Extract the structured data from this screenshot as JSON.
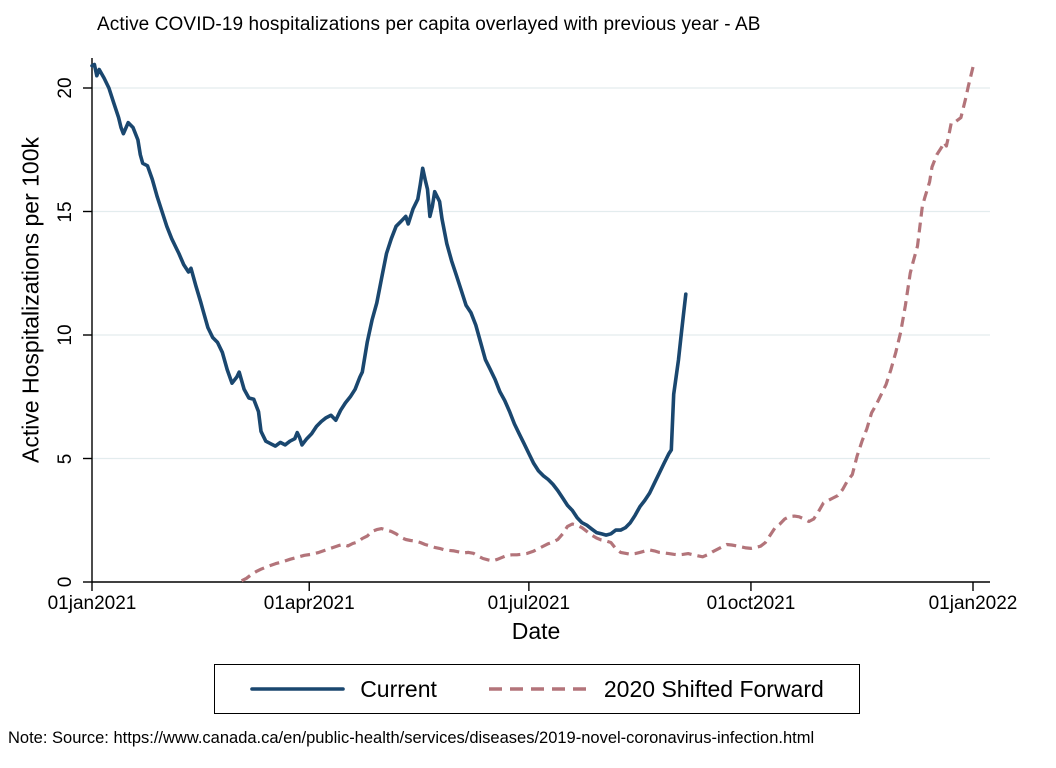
{
  "note": "Note: Source: https://www.canada.ca/en/public-health/services/diseases/2019-novel-coronavirus-infection.html",
  "legend": {
    "position": "bottom",
    "entries": [
      {
        "label": "Current",
        "style": "solid"
      },
      {
        "label": "2020 Shifted Forward",
        "style": "dashed"
      }
    ]
  },
  "chart_data": {
    "type": "line",
    "title": "Active COVID-19 hospitalizations per capita overlayed with previous year - AB",
    "xlabel": "Date",
    "ylabel": "Active Hospitalizations per 100k",
    "grid": true,
    "grid_color": "#e3ecee",
    "axis_color": "#000000",
    "x_unit": "days since 01jan2021",
    "xlim": [
      0,
      372
    ],
    "ylim": [
      0,
      21.2
    ],
    "x_ticks": [
      {
        "day": 0,
        "label": "01jan2021"
      },
      {
        "day": 90,
        "label": "01apr2021"
      },
      {
        "day": 181,
        "label": "01jul2021"
      },
      {
        "day": 273,
        "label": "01oct2021"
      },
      {
        "day": 365,
        "label": "01jan2022"
      }
    ],
    "y_ticks": [
      0,
      5,
      10,
      15,
      20
    ],
    "series": [
      {
        "name": "Current",
        "color": "#1a476f",
        "style": "solid",
        "points": [
          [
            0,
            20.9
          ],
          [
            1,
            20.95
          ],
          [
            2,
            20.5
          ],
          [
            3,
            20.75
          ],
          [
            5,
            20.4
          ],
          [
            7,
            20.0
          ],
          [
            9,
            19.4
          ],
          [
            11,
            18.8
          ],
          [
            12,
            18.4
          ],
          [
            13,
            18.15
          ],
          [
            15,
            18.6
          ],
          [
            17,
            18.4
          ],
          [
            19,
            17.9
          ],
          [
            20,
            17.3
          ],
          [
            21,
            16.95
          ],
          [
            23,
            16.85
          ],
          [
            25,
            16.3
          ],
          [
            27,
            15.6
          ],
          [
            29,
            15.0
          ],
          [
            31,
            14.4
          ],
          [
            33,
            13.9
          ],
          [
            35,
            13.5
          ],
          [
            36,
            13.3
          ],
          [
            38,
            12.85
          ],
          [
            40,
            12.55
          ],
          [
            41,
            12.7
          ],
          [
            43,
            12.0
          ],
          [
            45,
            11.35
          ],
          [
            46,
            11.0
          ],
          [
            48,
            10.3
          ],
          [
            50,
            9.9
          ],
          [
            52,
            9.7
          ],
          [
            54,
            9.3
          ],
          [
            56,
            8.6
          ],
          [
            58,
            8.05
          ],
          [
            60,
            8.3
          ],
          [
            61,
            8.5
          ],
          [
            63,
            7.8
          ],
          [
            65,
            7.45
          ],
          [
            67,
            7.4
          ],
          [
            69,
            6.9
          ],
          [
            70,
            6.1
          ],
          [
            71,
            5.9
          ],
          [
            72,
            5.7
          ],
          [
            74,
            5.6
          ],
          [
            76,
            5.5
          ],
          [
            78,
            5.65
          ],
          [
            80,
            5.55
          ],
          [
            82,
            5.7
          ],
          [
            84,
            5.8
          ],
          [
            85,
            6.05
          ],
          [
            86,
            5.85
          ],
          [
            87,
            5.55
          ],
          [
            89,
            5.8
          ],
          [
            91,
            6.0
          ],
          [
            93,
            6.3
          ],
          [
            95,
            6.5
          ],
          [
            97,
            6.65
          ],
          [
            99,
            6.75
          ],
          [
            101,
            6.55
          ],
          [
            103,
            6.95
          ],
          [
            105,
            7.25
          ],
          [
            107,
            7.5
          ],
          [
            109,
            7.8
          ],
          [
            111,
            8.3
          ],
          [
            112,
            8.5
          ],
          [
            114,
            9.7
          ],
          [
            116,
            10.6
          ],
          [
            118,
            11.3
          ],
          [
            120,
            12.3
          ],
          [
            122,
            13.3
          ],
          [
            124,
            13.9
          ],
          [
            126,
            14.4
          ],
          [
            128,
            14.6
          ],
          [
            130,
            14.8
          ],
          [
            131,
            14.5
          ],
          [
            133,
            15.1
          ],
          [
            135,
            15.5
          ],
          [
            136,
            16.1
          ],
          [
            137,
            16.75
          ],
          [
            138,
            16.3
          ],
          [
            139,
            15.9
          ],
          [
            140,
            14.8
          ],
          [
            141,
            15.2
          ],
          [
            142,
            15.8
          ],
          [
            144,
            15.4
          ],
          [
            145,
            14.7
          ],
          [
            147,
            13.7
          ],
          [
            149,
            13.0
          ],
          [
            151,
            12.4
          ],
          [
            153,
            11.8
          ],
          [
            155,
            11.2
          ],
          [
            157,
            10.9
          ],
          [
            159,
            10.4
          ],
          [
            161,
            9.7
          ],
          [
            163,
            9.0
          ],
          [
            165,
            8.6
          ],
          [
            167,
            8.2
          ],
          [
            169,
            7.7
          ],
          [
            171,
            7.35
          ],
          [
            173,
            6.9
          ],
          [
            175,
            6.4
          ],
          [
            177,
            6.0
          ],
          [
            179,
            5.6
          ],
          [
            181,
            5.2
          ],
          [
            183,
            4.8
          ],
          [
            185,
            4.5
          ],
          [
            187,
            4.3
          ],
          [
            189,
            4.15
          ],
          [
            191,
            3.95
          ],
          [
            193,
            3.7
          ],
          [
            195,
            3.4
          ],
          [
            197,
            3.1
          ],
          [
            199,
            2.9
          ],
          [
            201,
            2.6
          ],
          [
            203,
            2.4
          ],
          [
            205,
            2.3
          ],
          [
            207,
            2.15
          ],
          [
            209,
            2.0
          ],
          [
            211,
            1.95
          ],
          [
            213,
            1.9
          ],
          [
            215,
            1.95
          ],
          [
            217,
            2.1
          ],
          [
            219,
            2.1
          ],
          [
            221,
            2.2
          ],
          [
            223,
            2.4
          ],
          [
            225,
            2.7
          ],
          [
            227,
            3.05
          ],
          [
            229,
            3.3
          ],
          [
            231,
            3.6
          ],
          [
            233,
            4.0
          ],
          [
            235,
            4.4
          ],
          [
            237,
            4.8
          ],
          [
            239,
            5.2
          ],
          [
            240,
            5.35
          ],
          [
            241,
            7.6
          ],
          [
            242,
            8.3
          ],
          [
            243,
            9.0
          ],
          [
            244,
            9.9
          ],
          [
            245,
            10.8
          ],
          [
            246,
            11.65
          ]
        ]
      },
      {
        "name": "2020 Shifted Forward",
        "color": "#b3747a",
        "style": "dashed",
        "points": [
          [
            62,
            0.05
          ],
          [
            64,
            0.15
          ],
          [
            66,
            0.3
          ],
          [
            68,
            0.42
          ],
          [
            70,
            0.52
          ],
          [
            73,
            0.64
          ],
          [
            76,
            0.74
          ],
          [
            79,
            0.82
          ],
          [
            82,
            0.92
          ],
          [
            85,
            1.0
          ],
          [
            88,
            1.08
          ],
          [
            91,
            1.12
          ],
          [
            94,
            1.2
          ],
          [
            97,
            1.3
          ],
          [
            100,
            1.4
          ],
          [
            102,
            1.47
          ],
          [
            104,
            1.52
          ],
          [
            106,
            1.46
          ],
          [
            108,
            1.56
          ],
          [
            110,
            1.62
          ],
          [
            112,
            1.76
          ],
          [
            114,
            1.86
          ],
          [
            116,
            2.05
          ],
          [
            118,
            2.12
          ],
          [
            120,
            2.16
          ],
          [
            122,
            2.1
          ],
          [
            124,
            2.05
          ],
          [
            126,
            1.95
          ],
          [
            128,
            1.8
          ],
          [
            130,
            1.72
          ],
          [
            132,
            1.68
          ],
          [
            134,
            1.66
          ],
          [
            136,
            1.6
          ],
          [
            138,
            1.52
          ],
          [
            140,
            1.46
          ],
          [
            142,
            1.4
          ],
          [
            144,
            1.36
          ],
          [
            146,
            1.3
          ],
          [
            148,
            1.28
          ],
          [
            150,
            1.26
          ],
          [
            152,
            1.22
          ],
          [
            154,
            1.18
          ],
          [
            156,
            1.2
          ],
          [
            158,
            1.16
          ],
          [
            160,
            1.05
          ],
          [
            162,
            0.95
          ],
          [
            164,
            0.9
          ],
          [
            166,
            0.86
          ],
          [
            168,
            0.92
          ],
          [
            170,
            1.0
          ],
          [
            172,
            1.08
          ],
          [
            174,
            1.1
          ],
          [
            176,
            1.1
          ],
          [
            178,
            1.12
          ],
          [
            180,
            1.15
          ],
          [
            183,
            1.25
          ],
          [
            186,
            1.4
          ],
          [
            189,
            1.55
          ],
          [
            191,
            1.62
          ],
          [
            193,
            1.72
          ],
          [
            195,
            1.95
          ],
          [
            197,
            2.25
          ],
          [
            199,
            2.35
          ],
          [
            201,
            2.3
          ],
          [
            203,
            2.2
          ],
          [
            205,
            2.05
          ],
          [
            207,
            1.9
          ],
          [
            209,
            1.78
          ],
          [
            211,
            1.7
          ],
          [
            213,
            1.66
          ],
          [
            215,
            1.6
          ],
          [
            217,
            1.35
          ],
          [
            219,
            1.2
          ],
          [
            221,
            1.16
          ],
          [
            223,
            1.12
          ],
          [
            225,
            1.15
          ],
          [
            227,
            1.2
          ],
          [
            229,
            1.25
          ],
          [
            231,
            1.3
          ],
          [
            233,
            1.26
          ],
          [
            235,
            1.2
          ],
          [
            237,
            1.18
          ],
          [
            239,
            1.15
          ],
          [
            241,
            1.12
          ],
          [
            243,
            1.1
          ],
          [
            245,
            1.12
          ],
          [
            247,
            1.15
          ],
          [
            249,
            1.1
          ],
          [
            251,
            1.06
          ],
          [
            253,
            1.02
          ],
          [
            255,
            1.1
          ],
          [
            257,
            1.22
          ],
          [
            259,
            1.32
          ],
          [
            261,
            1.42
          ],
          [
            263,
            1.52
          ],
          [
            265,
            1.5
          ],
          [
            267,
            1.46
          ],
          [
            269,
            1.42
          ],
          [
            271,
            1.38
          ],
          [
            273,
            1.36
          ],
          [
            275,
            1.4
          ],
          [
            277,
            1.45
          ],
          [
            279,
            1.6
          ],
          [
            281,
            1.9
          ],
          [
            283,
            2.2
          ],
          [
            285,
            2.35
          ],
          [
            287,
            2.55
          ],
          [
            289,
            2.65
          ],
          [
            291,
            2.67
          ],
          [
            293,
            2.64
          ],
          [
            295,
            2.55
          ],
          [
            297,
            2.45
          ],
          [
            299,
            2.55
          ],
          [
            301,
            2.85
          ],
          [
            303,
            3.2
          ],
          [
            305,
            3.3
          ],
          [
            307,
            3.4
          ],
          [
            309,
            3.5
          ],
          [
            311,
            3.75
          ],
          [
            313,
            4.1
          ],
          [
            315,
            4.35
          ],
          [
            317,
            5.1
          ],
          [
            319,
            5.7
          ],
          [
            321,
            6.2
          ],
          [
            323,
            6.85
          ],
          [
            325,
            7.2
          ],
          [
            327,
            7.6
          ],
          [
            329,
            8.0
          ],
          [
            331,
            8.6
          ],
          [
            333,
            9.3
          ],
          [
            335,
            10.1
          ],
          [
            337,
            11.2
          ],
          [
            339,
            12.5
          ],
          [
            340,
            12.9
          ],
          [
            342,
            13.6
          ],
          [
            344,
            15.2
          ],
          [
            345,
            15.55
          ],
          [
            347,
            16.2
          ],
          [
            348,
            16.8
          ],
          [
            350,
            17.3
          ],
          [
            352,
            17.6
          ],
          [
            353,
            17.8
          ],
          [
            354,
            17.65
          ],
          [
            355,
            18.1
          ],
          [
            356,
            18.6
          ],
          [
            358,
            18.65
          ],
          [
            360,
            18.8
          ],
          [
            362,
            19.6
          ],
          [
            363,
            20.05
          ],
          [
            364,
            20.45
          ],
          [
            365,
            20.85
          ]
        ]
      }
    ]
  }
}
